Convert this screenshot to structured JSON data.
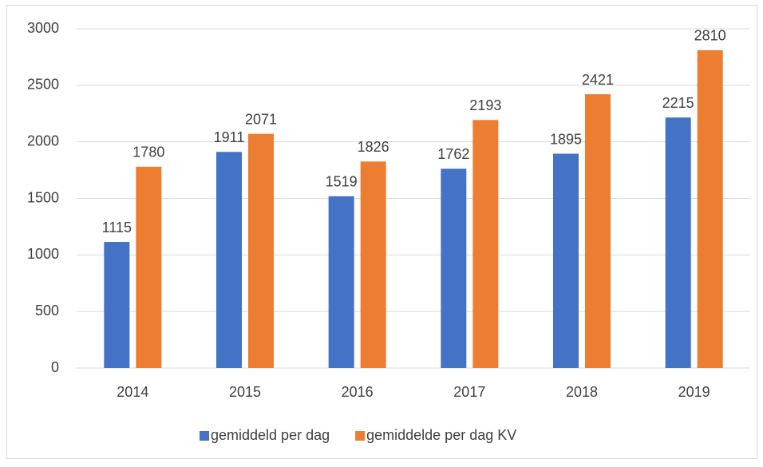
{
  "chart_data": {
    "type": "bar",
    "categories": [
      "2014",
      "2015",
      "2016",
      "2017",
      "2018",
      "2019"
    ],
    "series": [
      {
        "name": "gemiddeld per dag",
        "color": "#4472c4",
        "values": [
          1115,
          1911,
          1519,
          1762,
          1895,
          2215
        ]
      },
      {
        "name": "gemiddelde per dag KV",
        "color": "#ed7d31",
        "values": [
          1780,
          2071,
          1826,
          2193,
          2421,
          2810
        ]
      }
    ],
    "ylim": [
      0,
      3000
    ],
    "yticks": [
      0,
      500,
      1000,
      1500,
      2000,
      2500,
      3000
    ],
    "grid": true,
    "legend": "bottom"
  }
}
